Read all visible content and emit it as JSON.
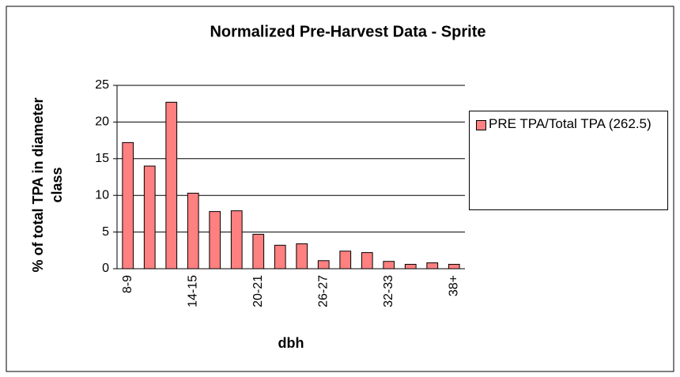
{
  "chart_data": {
    "type": "bar",
    "title": "Normalized Pre-Harvest Data - Sprite",
    "x_label": "dbh",
    "y_label": "% of total TPA in diameter class",
    "categories": [
      "8-9",
      null,
      null,
      "14-15",
      null,
      null,
      "20-21",
      null,
      null,
      "26-27",
      null,
      null,
      "32-33",
      null,
      null,
      "38+"
    ],
    "series": [
      {
        "name": "PRE TPA/Total TPA (262.5)",
        "color": "#ff8080",
        "values": [
          17.2,
          14.0,
          22.7,
          10.3,
          7.8,
          7.9,
          4.7,
          3.2,
          3.4,
          1.1,
          2.4,
          2.2,
          1.0,
          0.6,
          0.8,
          0.6
        ]
      }
    ],
    "ylim": [
      0,
      25
    ],
    "yticks": [
      0,
      5,
      10,
      15,
      20,
      25
    ],
    "grid": true,
    "legend": "right"
  }
}
